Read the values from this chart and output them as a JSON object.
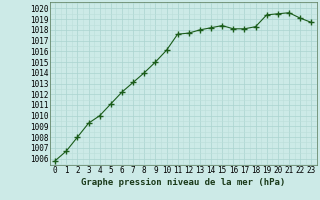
{
  "x": [
    0,
    1,
    2,
    3,
    4,
    5,
    6,
    7,
    8,
    9,
    10,
    11,
    12,
    13,
    14,
    15,
    16,
    17,
    18,
    19,
    20,
    21,
    22,
    23
  ],
  "y": [
    1005.8,
    1006.7,
    1008.0,
    1009.3,
    1010.0,
    1011.1,
    1012.2,
    1013.1,
    1014.0,
    1015.0,
    1016.1,
    1017.6,
    1017.7,
    1018.0,
    1018.2,
    1018.4,
    1018.1,
    1018.1,
    1018.3,
    1019.4,
    1019.5,
    1019.6,
    1019.1,
    1018.7
  ],
  "line_color": "#1a5c1a",
  "marker": "+",
  "marker_size": 4,
  "bg_color": "#cceae7",
  "grid_major_color": "#aad4d0",
  "grid_minor_color": "#bbdeda",
  "xlabel": "Graphe pression niveau de la mer (hPa)",
  "xlabel_fontsize": 6.5,
  "ylabel_ticks": [
    1006,
    1007,
    1008,
    1009,
    1010,
    1011,
    1012,
    1013,
    1014,
    1015,
    1016,
    1017,
    1018,
    1019,
    1020
  ],
  "ylim": [
    1005.4,
    1020.6
  ],
  "xlim": [
    -0.5,
    23.5
  ],
  "tick_fontsize": 5.5
}
